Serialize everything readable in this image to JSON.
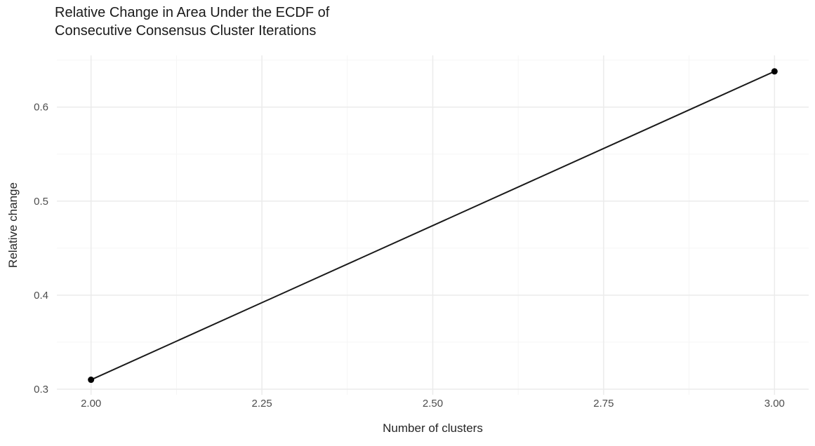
{
  "chart_data": {
    "type": "line",
    "title": "Relative Change in Area Under the ECDF of\nConsecutive Consensus Cluster Iterations",
    "xlabel": "Number of clusters",
    "ylabel": "Relative change",
    "points": [
      {
        "x": 2.0,
        "y": 0.31
      },
      {
        "x": 3.0,
        "y": 0.638
      }
    ],
    "xlim": [
      1.95,
      3.05
    ],
    "ylim": [
      0.294,
      0.655
    ],
    "x_ticks": [
      2.0,
      2.25,
      2.5,
      2.75,
      3.0
    ],
    "x_tick_labels": [
      "2.00",
      "2.25",
      "2.50",
      "2.75",
      "3.00"
    ],
    "y_ticks": [
      0.3,
      0.4,
      0.5,
      0.6
    ],
    "y_tick_labels": [
      "0.3",
      "0.4",
      "0.5",
      "0.6"
    ],
    "x_minor_ticks": [
      2.125,
      2.375,
      2.625,
      2.875
    ],
    "y_minor_ticks": [
      0.35,
      0.45,
      0.55,
      0.65
    ],
    "grid": true,
    "legend": "none",
    "colors": {
      "line": "#1a1a1a",
      "point": "#000000",
      "grid_major": "#ebebeb",
      "grid_minor": "#f5f5f5",
      "tick_label": "#4d4d4d",
      "axis_title": "#262626",
      "title": "#1a1a1a",
      "background": "#ffffff"
    }
  }
}
